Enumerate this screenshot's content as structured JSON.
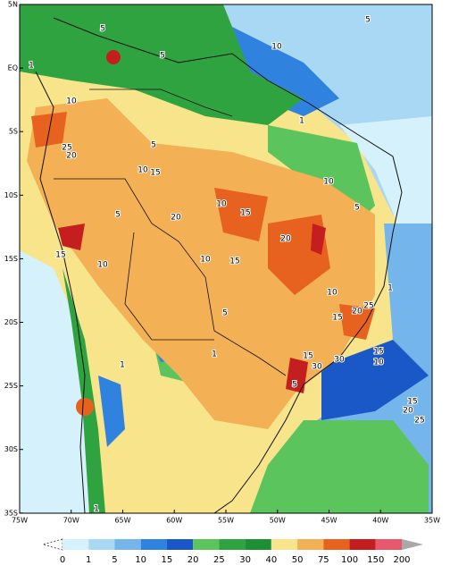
{
  "map": {
    "lat_labels": [
      "5N",
      "EQ",
      "5S",
      "10S",
      "15S",
      "20S",
      "25S",
      "30S",
      "35S"
    ],
    "lon_labels": [
      "75W",
      "70W",
      "65W",
      "60W",
      "55W",
      "50W",
      "45W",
      "40W",
      "35W"
    ],
    "legend": {
      "levels": [
        "0",
        "1",
        "5",
        "10",
        "15",
        "20",
        "25",
        "30",
        "40",
        "50",
        "75",
        "100",
        "150",
        "200"
      ],
      "colors": [
        "#ffffff",
        "#d5f1fb",
        "#a9d8f4",
        "#74b6eb",
        "#2f83de",
        "#1a57c7",
        "#5cc45c",
        "#2fa33f",
        "#1d8f34",
        "#f7e48b",
        "#f3b055",
        "#e8621f",
        "#c41e1e",
        "#e8576d"
      ],
      "over_color": "#a8a8a8"
    },
    "contour_labels": [
      "5",
      "5",
      "10",
      "5",
      "1",
      "10",
      "25",
      "20",
      "5",
      "10",
      "15",
      "1",
      "10",
      "15",
      "20",
      "10",
      "5",
      "5",
      "15",
      "10",
      "10",
      "15",
      "20",
      "10",
      "15",
      "20",
      "25",
      "1",
      "5",
      "1",
      "15",
      "30",
      "30",
      "5",
      "15",
      "10",
      "1",
      "15",
      "20",
      "25",
      "1"
    ]
  }
}
